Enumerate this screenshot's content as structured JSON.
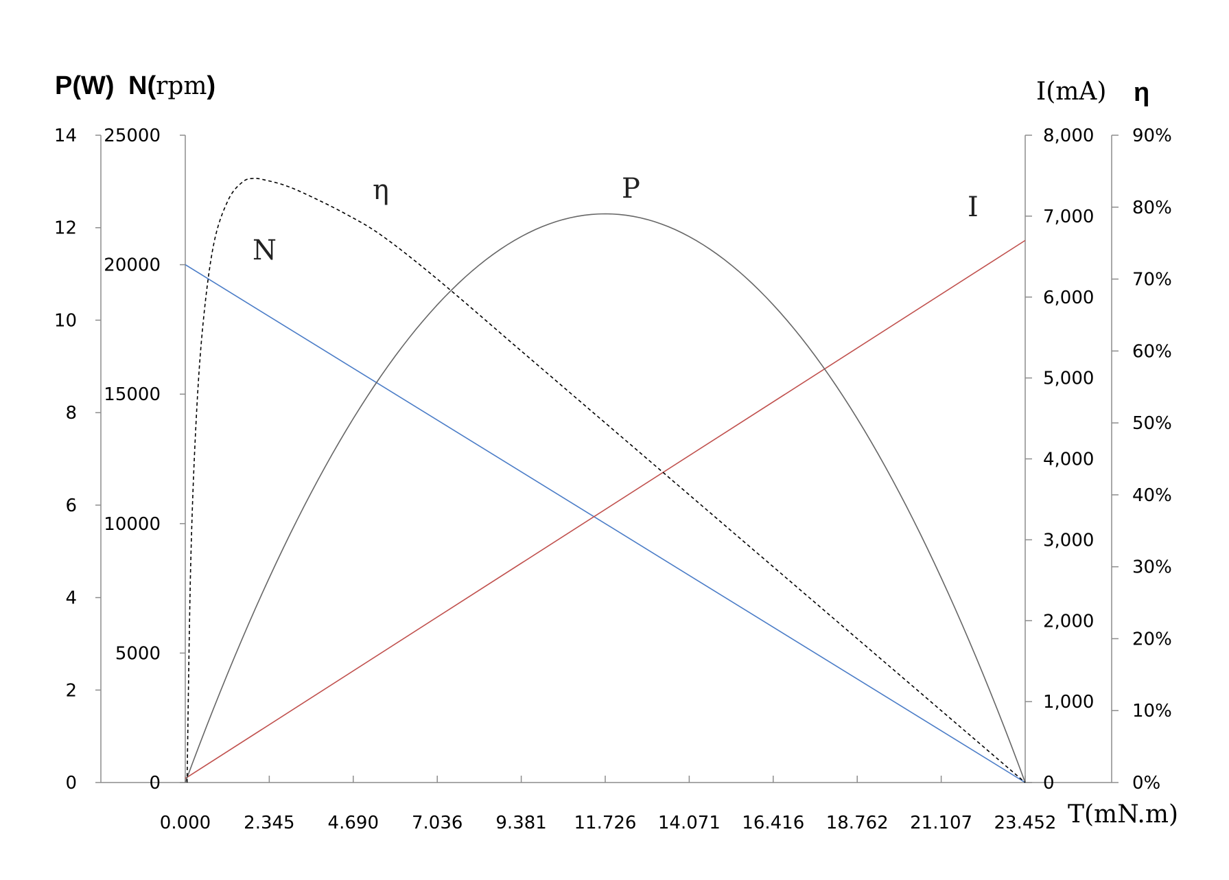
{
  "chart_data": {
    "type": "line",
    "title": "",
    "axes": {
      "x": {
        "label": "T(mN.m)",
        "ticks": [
          "0.000",
          "2.345",
          "4.690",
          "7.036",
          "9.381",
          "11.726",
          "14.071",
          "16.416",
          "18.762",
          "21.107",
          "23.452"
        ],
        "range": [
          0,
          23.452
        ]
      },
      "y_power": {
        "label": "P(W)",
        "ticks": [
          "0",
          "2",
          "4",
          "6",
          "8",
          "10",
          "12",
          "14"
        ],
        "range": [
          0,
          14
        ]
      },
      "y_speed": {
        "label_bold": "N(",
        "label_serif": "rpm",
        "label_close": ")",
        "ticks": [
          "0",
          "5000",
          "10000",
          "15000",
          "20000",
          "25000"
        ],
        "range": [
          0,
          25000
        ]
      },
      "y_current": {
        "label": "I(mA)",
        "ticks": [
          "0",
          "1,000",
          "2,000",
          "3,000",
          "4,000",
          "5,000",
          "6,000",
          "7,000",
          "8,000"
        ],
        "range": [
          0,
          8000
        ]
      },
      "y_efficiency": {
        "label": "η",
        "ticks": [
          "0%",
          "10%",
          "20%",
          "30%",
          "40%",
          "50%",
          "60%",
          "70%",
          "80%",
          "90%"
        ],
        "range": [
          0,
          0.9
        ]
      }
    },
    "series": [
      {
        "name": "N",
        "axis": "y_speed",
        "color": "#4a7cc7",
        "x": [
          0,
          23.452
        ],
        "values": [
          20000,
          0
        ]
      },
      {
        "name": "I",
        "axis": "y_current",
        "color": "#c0504d",
        "x": [
          0,
          23.452
        ],
        "values": [
          50,
          6700
        ]
      },
      {
        "name": "P",
        "axis": "y_power",
        "color": "#666666",
        "x": [
          0,
          23.452
        ],
        "peak": {
          "x": 11.726,
          "y": 12.3
        }
      },
      {
        "name": "η",
        "axis": "y_efficiency",
        "color": "#000000",
        "style": "dashed",
        "x": [
          0.05,
          0.15,
          0.3,
          0.5,
          0.8,
          1.2,
          1.6,
          1.9,
          2.2,
          2.8,
          3.5,
          4.5,
          5.5,
          7.036,
          9.381,
          11.726,
          14.071,
          16.416,
          18.762,
          21.107,
          23.452
        ],
        "values": [
          0.0,
          0.3,
          0.5,
          0.64,
          0.75,
          0.81,
          0.835,
          0.84,
          0.838,
          0.83,
          0.815,
          0.79,
          0.76,
          0.7,
          0.6,
          0.5,
          0.4,
          0.3,
          0.2,
          0.1,
          0.0
        ]
      }
    ],
    "grid": false,
    "legend": "none"
  }
}
